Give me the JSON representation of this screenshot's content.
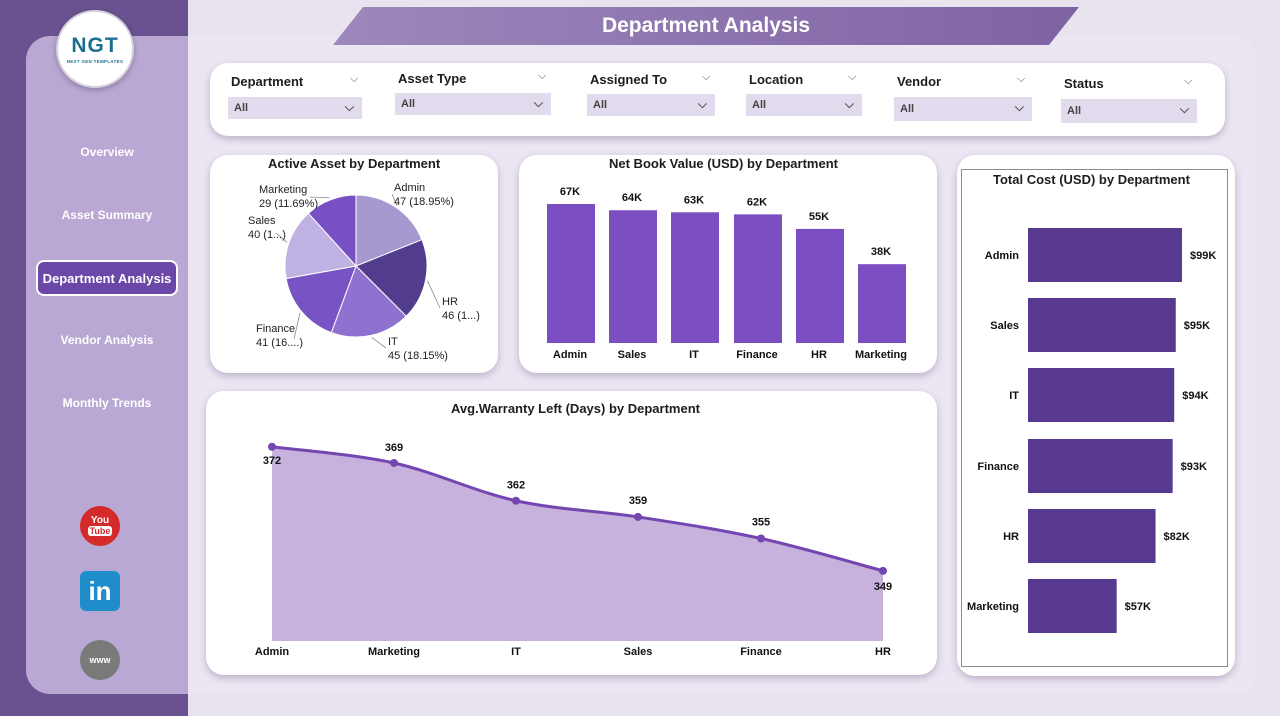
{
  "header": {
    "title": "Department Analysis"
  },
  "logo": {
    "text": "NGT",
    "subtitle": "NEXT GEN TEMPLATES"
  },
  "nav": [
    {
      "label": "Overview",
      "active": false
    },
    {
      "label": "Asset Summary",
      "active": false
    },
    {
      "label": "Department Analysis",
      "active": true
    },
    {
      "label": "Vendor Analysis",
      "active": false
    },
    {
      "label": "Monthly Trends",
      "active": false
    }
  ],
  "social": {
    "youtube_top": "You",
    "youtube_bottom": "Tube",
    "linkedin": "in",
    "website": "www"
  },
  "filters": [
    {
      "label": "Department",
      "value": "All"
    },
    {
      "label": "Asset Type",
      "value": "All"
    },
    {
      "label": "Assigned To",
      "value": "All"
    },
    {
      "label": "Location",
      "value": "All"
    },
    {
      "label": "Vendor",
      "value": "All"
    },
    {
      "label": "Status",
      "value": "All"
    }
  ],
  "colors": {
    "accent": "#6b47a8",
    "bar": "#7b4fc2",
    "hbar": "#573a90",
    "area": "#c6b2dc",
    "line": "#7346b1"
  },
  "chart_data": [
    {
      "type": "pie",
      "title": "Active Asset by Department",
      "categories": [
        "Admin",
        "HR",
        "IT",
        "Finance",
        "Sales",
        "Marketing"
      ],
      "values": [
        47,
        46,
        45,
        41,
        40,
        29
      ],
      "labels": [
        "Admin\n47 (18.95%)",
        "HR\n46 (1...)",
        "IT\n45 (18.15%)",
        "Finance\n41 (16....)",
        "Sales\n40 (1...)",
        "Marketing\n29 (11.69%)"
      ],
      "colors": [
        "#a898d0",
        "#523c8e",
        "#8f71d0",
        "#7753c3",
        "#c0b1e3",
        "#7850c4"
      ]
    },
    {
      "type": "bar",
      "title": "Net Book Value (USD) by Department",
      "categories": [
        "Admin",
        "Sales",
        "IT",
        "Finance",
        "HR",
        "Marketing"
      ],
      "values": [
        67,
        64,
        63,
        62,
        55,
        38
      ],
      "data_labels": [
        "67K",
        "64K",
        "63K",
        "62K",
        "55K",
        "38K"
      ],
      "unit": "K USD",
      "ylim": [
        0,
        75
      ]
    },
    {
      "type": "bar",
      "orientation": "horizontal",
      "title": "Total Cost (USD) by Department",
      "categories": [
        "Admin",
        "Sales",
        "IT",
        "Finance",
        "HR",
        "Marketing"
      ],
      "values": [
        99,
        95,
        94,
        93,
        82,
        57
      ],
      "data_labels": [
        "$99K",
        "$95K",
        "$94K",
        "$93K",
        "$82K",
        "$57K"
      ],
      "unit": "K USD",
      "xlim": [
        0,
        100
      ]
    },
    {
      "type": "area",
      "title": "Avg.Warranty Left (Days) by Department",
      "categories": [
        "Admin",
        "Marketing",
        "IT",
        "Sales",
        "Finance",
        "HR"
      ],
      "values": [
        372,
        369,
        362,
        359,
        355,
        349
      ],
      "ylim": [
        336,
        374
      ]
    }
  ]
}
